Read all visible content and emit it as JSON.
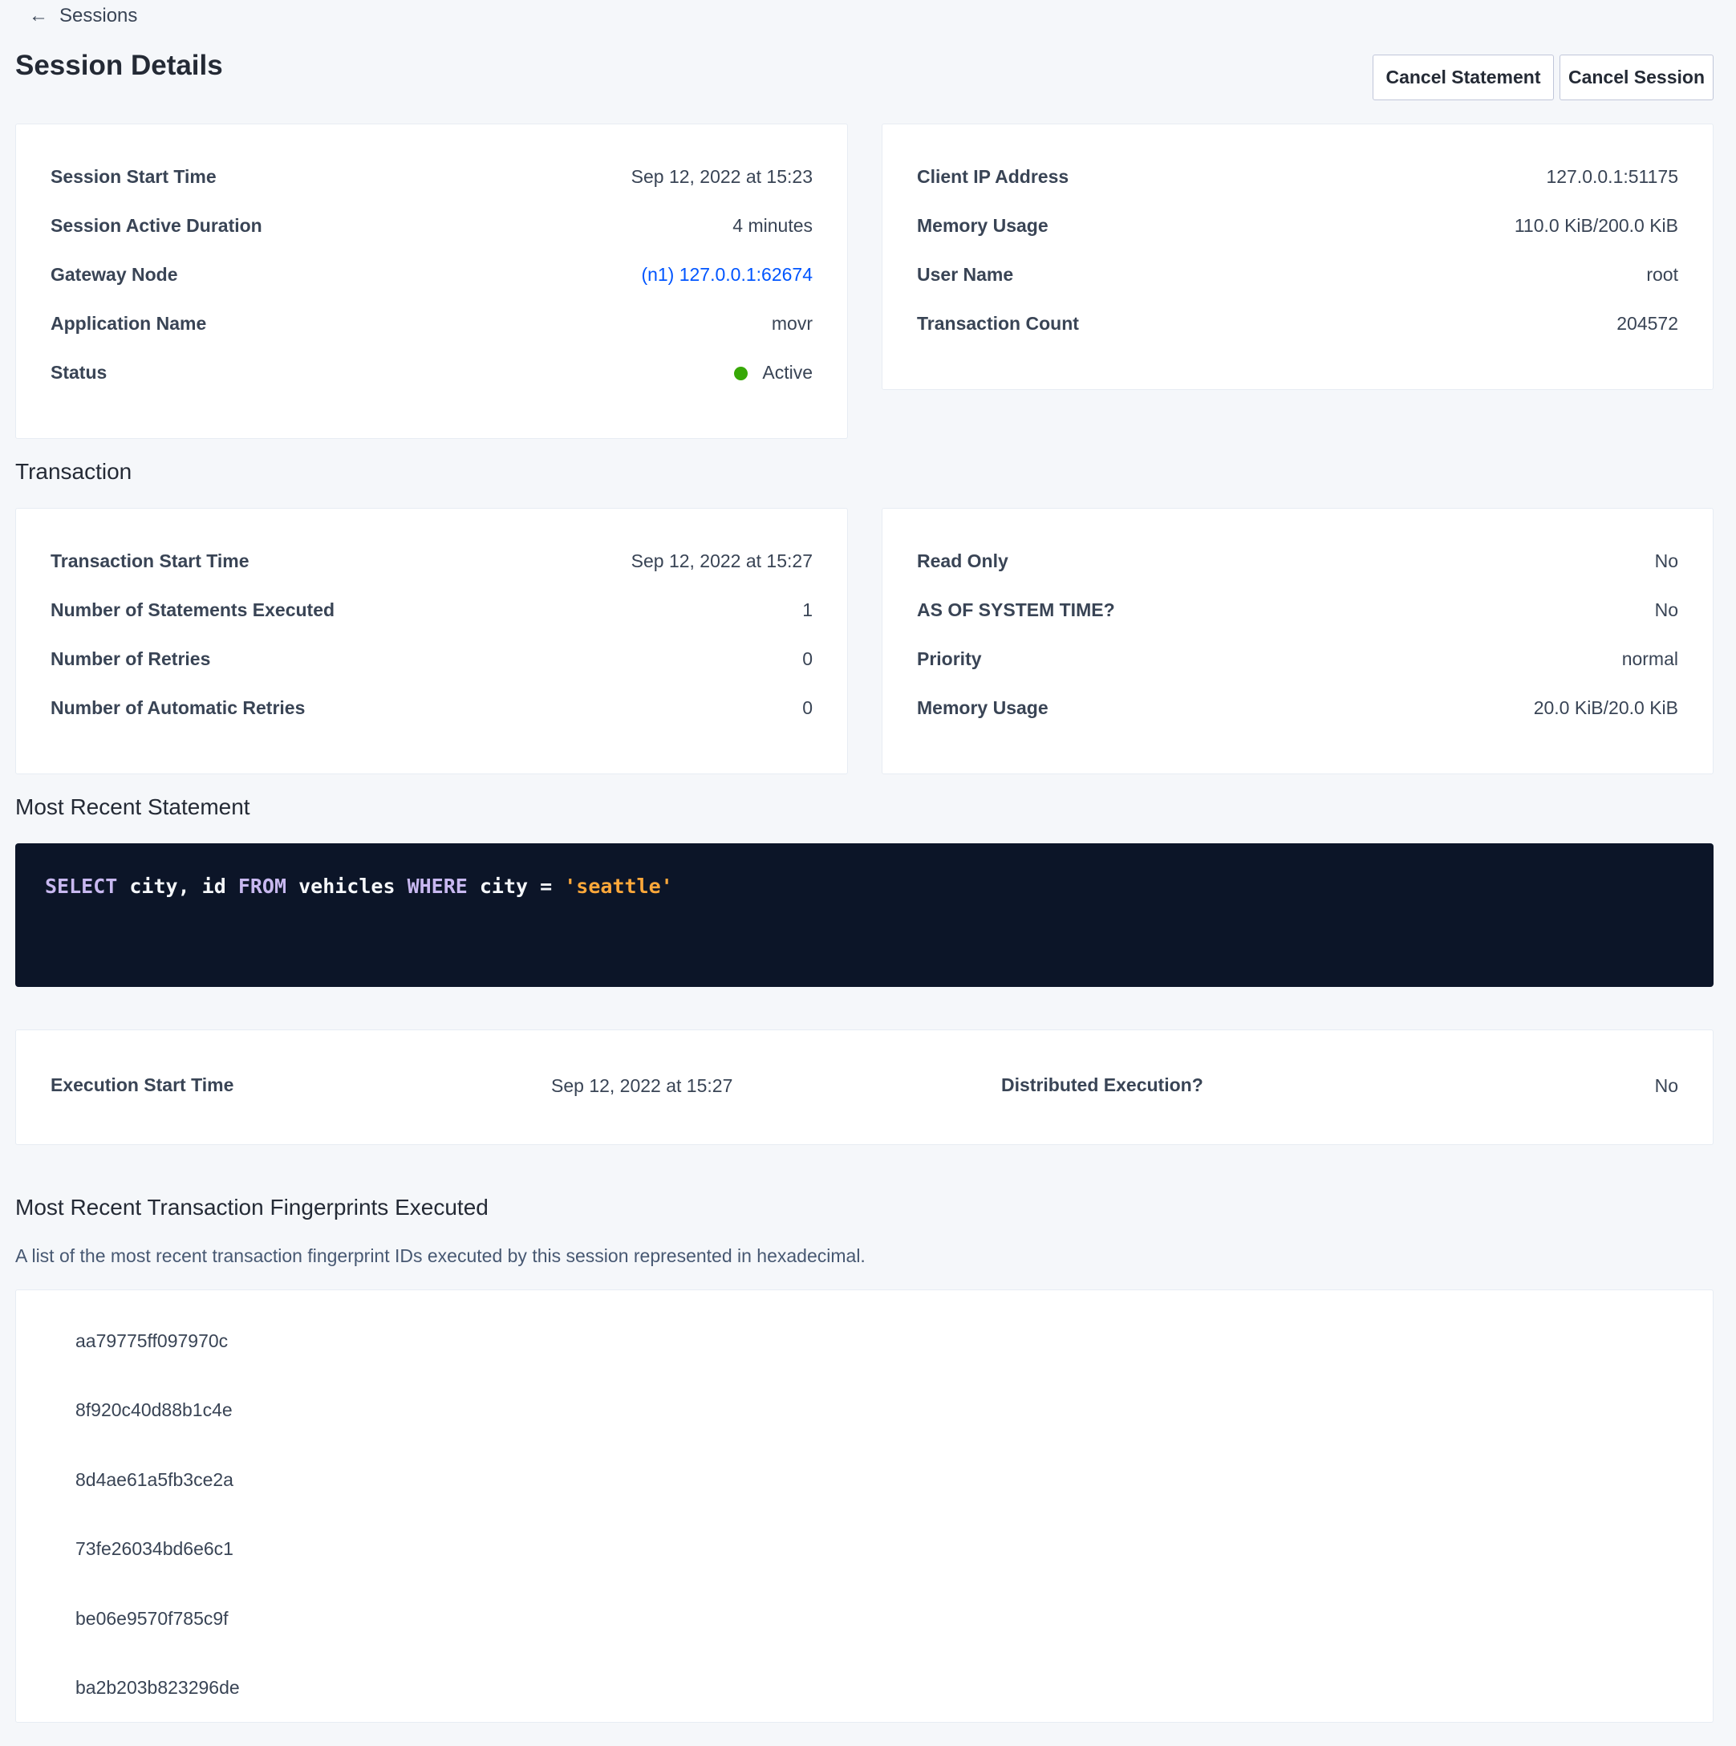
{
  "nav": {
    "back_label": "Sessions",
    "back_icon": "arrow-left-icon"
  },
  "header": {
    "title": "Session Details",
    "cancel_statement": "Cancel Statement",
    "cancel_session": "Cancel Session"
  },
  "session_left": [
    {
      "label": "Session Start Time",
      "value": "Sep 12, 2022 at 15:23"
    },
    {
      "label": "Session Active Duration",
      "value": "4 minutes"
    },
    {
      "label": "Gateway Node",
      "value": "(n1) 127.0.0.1:62674"
    },
    {
      "label": "Application Name",
      "value": "movr"
    },
    {
      "label": "Status",
      "value": "Active"
    }
  ],
  "session_right": [
    {
      "label": "Client IP Address",
      "value": "127.0.0.1:51175"
    },
    {
      "label": "Memory Usage",
      "value": "110.0 KiB/200.0 KiB"
    },
    {
      "label": "User Name",
      "value": "root"
    },
    {
      "label": "Transaction Count",
      "value": "204572"
    }
  ],
  "transaction": {
    "heading": "Transaction",
    "left": [
      {
        "label": "Transaction Start Time",
        "value": "Sep 12, 2022 at 15:27"
      },
      {
        "label": "Number of Statements Executed",
        "value": "1"
      },
      {
        "label": "Number of Retries",
        "value": "0"
      },
      {
        "label": "Number of Automatic Retries",
        "value": "0"
      }
    ],
    "right": [
      {
        "label": "Read Only",
        "value": "No"
      },
      {
        "label": "AS OF SYSTEM TIME?",
        "value": "No"
      },
      {
        "label": "Priority",
        "value": "normal"
      },
      {
        "label": "Memory Usage",
        "value": "20.0 KiB/20.0 KiB"
      }
    ]
  },
  "statement": {
    "heading": "Most Recent Statement",
    "tokens": [
      "SELECT",
      " city, id ",
      "FROM",
      " vehicles ",
      "WHERE",
      " city = ",
      "'seattle'"
    ],
    "execution_start_label": "Execution Start Time",
    "execution_start_value": "Sep 12, 2022 at 15:27",
    "distributed_label": "Distributed Execution?",
    "distributed_value": "No"
  },
  "fingerprints": {
    "heading": "Most Recent Transaction Fingerprints Executed",
    "description": "A list of the most recent transaction fingerprint IDs executed by this session represented in hexadecimal.",
    "items": [
      "aa79775ff097970c",
      "8f920c40d88b1c4e",
      "8d4ae61a5fb3ce2a",
      "73fe26034bd6e6c1",
      "be06e9570f785c9f",
      "ba2b203b823296de"
    ]
  },
  "colors": {
    "link": "#0055ff",
    "status_active": "#37a806",
    "code_bg": "#0c1528",
    "keyword": "#c8b8f0",
    "string": "#ffa83a"
  }
}
